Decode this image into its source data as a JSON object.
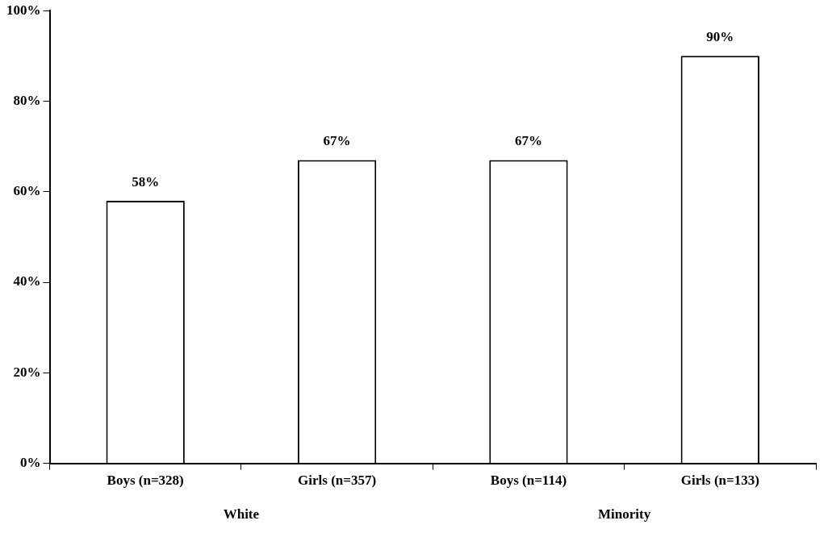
{
  "chart_data": {
    "type": "bar",
    "categories": [
      "Boys (n=328)",
      "Girls (n=357)",
      "Boys (n=114)",
      "Girls (n=133)"
    ],
    "values": [
      58,
      67,
      67,
      90
    ],
    "value_labels": [
      "58%",
      "67%",
      "67%",
      "90%"
    ],
    "color": "#ffffff",
    "ylim": [
      0,
      100
    ],
    "yticks": [
      {
        "value": 0,
        "label": "0%"
      },
      {
        "value": 20,
        "label": "20%"
      },
      {
        "value": 40,
        "label": "40%"
      },
      {
        "value": 60,
        "label": "60%"
      },
      {
        "value": 80,
        "label": "80%"
      },
      {
        "value": 100,
        "label": "100%"
      }
    ],
    "grid": false,
    "legend": false,
    "annotations": [
      "White",
      "Minority"
    ]
  }
}
